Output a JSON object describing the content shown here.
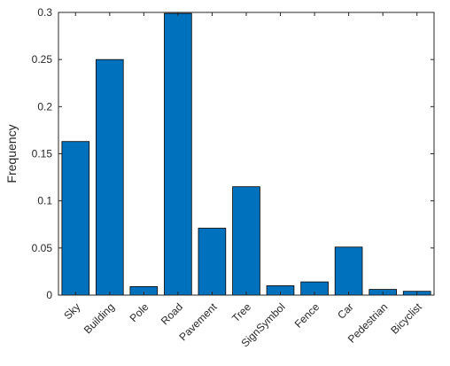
{
  "chart_data": {
    "type": "bar",
    "title": "",
    "xlabel": "",
    "ylabel": "Frequency",
    "ylim": [
      0,
      0.3
    ],
    "yticks": [
      "0",
      "0.05",
      "0.1",
      "0.15",
      "0.2",
      "0.25",
      "0.3"
    ],
    "ytick_values": [
      0,
      0.05,
      0.1,
      0.15,
      0.2,
      0.25,
      0.3
    ],
    "categories": [
      "Sky",
      "Building",
      "Pole",
      "Road",
      "Pavement",
      "Tree",
      "SignSymbol",
      "Fence",
      "Car",
      "Pedestrian",
      "Bicyclist"
    ],
    "values": [
      0.163,
      0.25,
      0.009,
      0.299,
      0.071,
      0.115,
      0.01,
      0.014,
      0.051,
      0.006,
      0.004
    ],
    "grid": false,
    "bar_color": "#0072BD",
    "edge_color": "#000000"
  }
}
